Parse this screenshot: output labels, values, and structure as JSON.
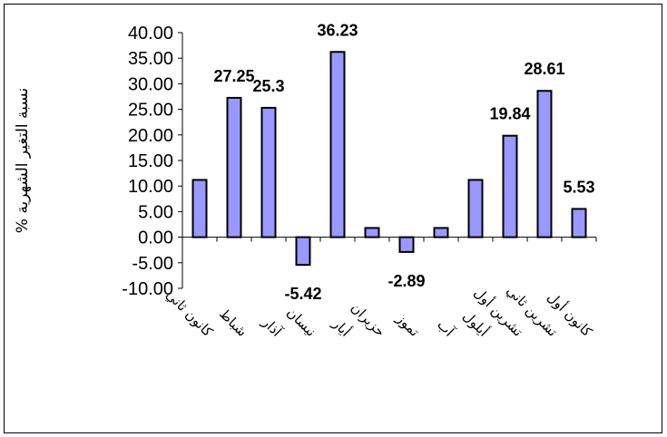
{
  "chart_data": {
    "type": "bar",
    "title": "",
    "xlabel": "",
    "ylabel": "نسبة التغير الشهرية %",
    "ylim": [
      -10,
      40
    ],
    "y_ticks": [
      "40.00",
      "35.00",
      "30.00",
      "25.00",
      "20.00",
      "15.00",
      "10.00",
      "5.00",
      "0.00",
      "-5.00",
      "-10.00"
    ],
    "categories": [
      "كانون ثاني",
      "شباط",
      "آذار",
      "نيسان",
      "أيار",
      "حزيران",
      "تموز",
      "آب",
      "أيلول",
      "تشرين أول",
      "تشرين ثاني",
      "كانون أول"
    ],
    "values": [
      11.2,
      27.25,
      25.3,
      -5.42,
      36.23,
      1.8,
      -2.89,
      1.8,
      11.2,
      19.84,
      28.61,
      5.53
    ],
    "data_labels": [
      "",
      "27.25",
      "25.3",
      "-5.42",
      "36.23",
      "",
      "-2.89",
      "",
      "",
      "19.84",
      "28.61",
      "5.53"
    ],
    "bar_color": "#9999ff",
    "bar_edge_color": "#000000",
    "grid": false,
    "legend": "none"
  }
}
